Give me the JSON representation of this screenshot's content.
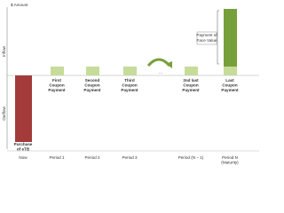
{
  "axis": {
    "y_label": "$ Amount",
    "inflow": "Inflow",
    "outflow": "Outflow"
  },
  "bars": [
    {
      "lines": [
        "Purchase",
        "of eTB"
      ]
    },
    {
      "lines": [
        "First",
        "Coupon",
        "Payment"
      ]
    },
    {
      "lines": [
        "Second",
        "Coupon",
        "Payment"
      ]
    },
    {
      "lines": [
        "Third",
        "Coupon",
        "Payment"
      ]
    },
    {
      "lines": [
        "2nd last",
        "Coupon",
        "Payment"
      ]
    },
    {
      "lines": [
        "Last",
        "Coupon",
        "Payment"
      ]
    }
  ],
  "ellipsis": "...",
  "face_value_note": [
    "Payment of",
    "Face Value"
  ],
  "periods": [
    {
      "lines": [
        "Now"
      ]
    },
    {
      "lines": [
        "Period 1"
      ]
    },
    {
      "lines": [
        "Period 2"
      ]
    },
    {
      "lines": [
        "Period 3"
      ]
    },
    {
      "lines": [
        "Period (N – 1)"
      ]
    },
    {
      "lines": [
        "Period N",
        "(Maturity)"
      ]
    }
  ]
}
